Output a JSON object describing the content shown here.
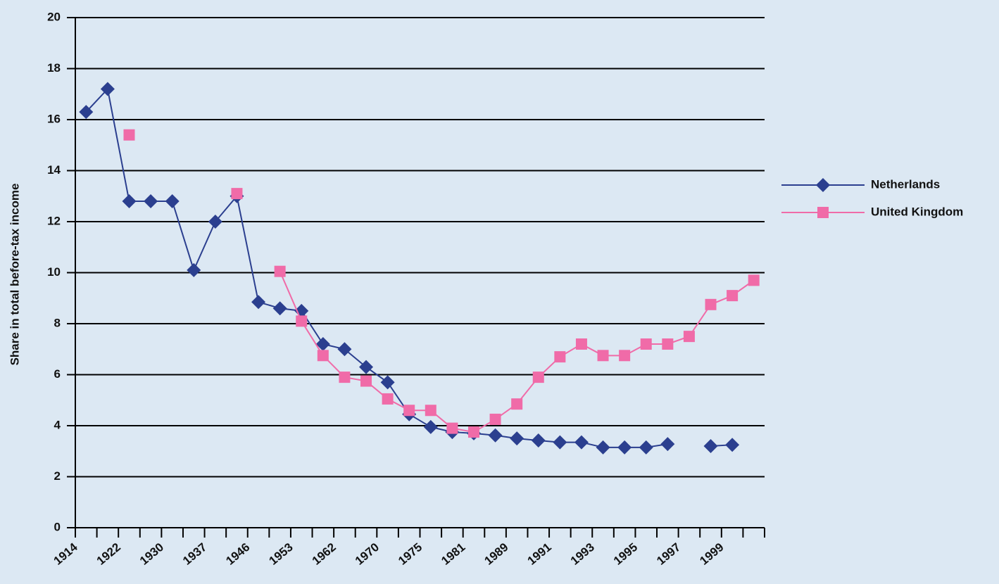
{
  "chart_data": {
    "type": "line",
    "y_label": "Share in total before-tax income",
    "categories": [
      "1914",
      null,
      "1922",
      null,
      "1930",
      null,
      "1937",
      null,
      "1946",
      null,
      "1953",
      null,
      "1962",
      null,
      "1970",
      null,
      "1975",
      null,
      "1981",
      null,
      "1989",
      null,
      "1991",
      null,
      "1993",
      null,
      "1995",
      null,
      "1997",
      null,
      "1999",
      null
    ],
    "series": [
      {
        "name": "Netherlands",
        "color": "#2b3f8f",
        "marker": "diamond",
        "values": [
          16.3,
          17.2,
          12.8,
          12.8,
          12.8,
          10.1,
          12.0,
          13.0,
          8.85,
          8.6,
          8.5,
          7.2,
          7.0,
          6.3,
          5.7,
          4.45,
          3.95,
          3.75,
          3.7,
          3.62,
          3.5,
          3.42,
          3.35,
          3.35,
          3.15,
          3.15,
          3.15,
          3.28,
          null,
          3.2,
          3.25,
          null
        ]
      },
      {
        "name": "United Kingdom",
        "color": "#f06ba8",
        "marker": "square",
        "values": [
          null,
          null,
          15.4,
          null,
          null,
          null,
          null,
          13.1,
          null,
          10.05,
          8.1,
          6.75,
          5.9,
          5.75,
          5.05,
          4.6,
          4.6,
          3.9,
          3.75,
          4.25,
          4.85,
          5.9,
          6.7,
          7.2,
          6.75,
          6.75,
          7.2,
          7.2,
          7.5,
          8.75,
          9.1,
          9.7
        ]
      }
    ],
    "ylim": [
      0,
      20
    ],
    "yticks": [
      0,
      2,
      4,
      6,
      8,
      10,
      12,
      14,
      16,
      18,
      20
    ],
    "grid": true,
    "legend": "right"
  }
}
